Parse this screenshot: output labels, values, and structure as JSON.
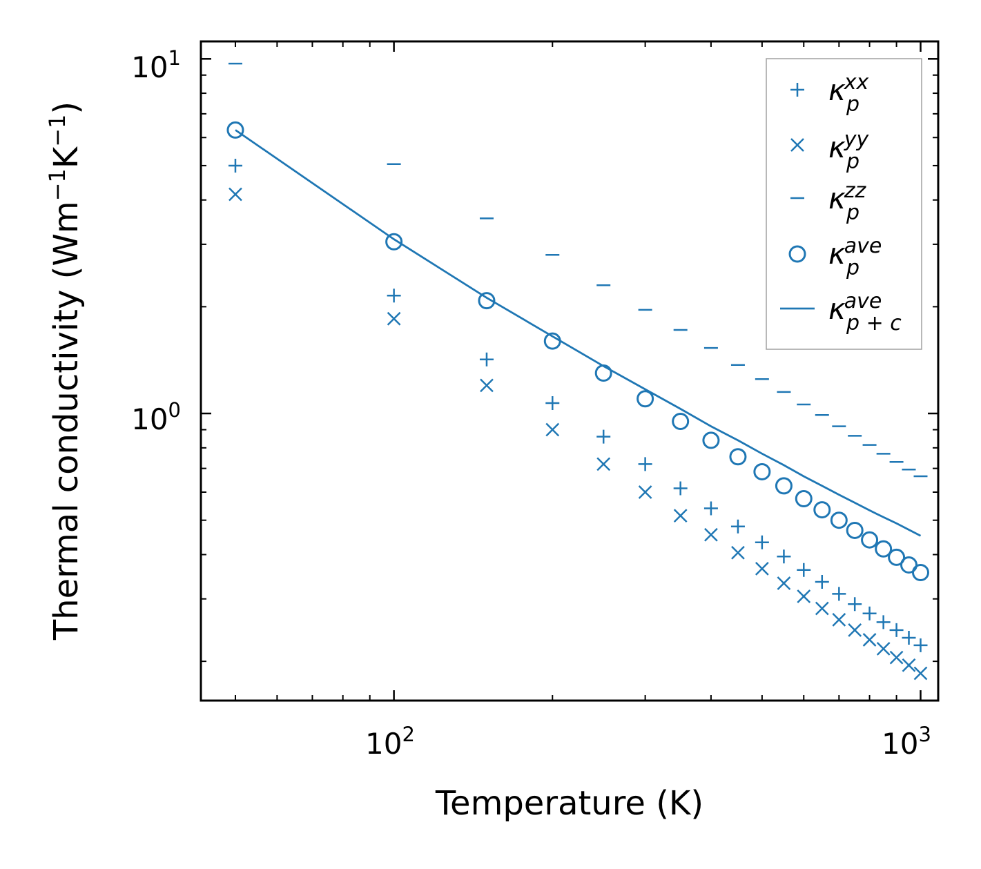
{
  "chart_data": {
    "type": "scatter",
    "title": "",
    "xscale": "log",
    "yscale": "log",
    "xlim": [
      43,
      1080
    ],
    "ylim": [
      0.155,
      11.2
    ],
    "xlabel": "Temperature (K)",
    "ylabel": {
      "prefix": "Thermal conductivity (Wm",
      "sup1": "−1",
      "mid": "K",
      "sup2": "−1",
      "suffix": ")"
    },
    "x_ticks": [
      {
        "base": "10",
        "exp": "2",
        "value": 100
      },
      {
        "base": "10",
        "exp": "3",
        "value": 1000
      }
    ],
    "y_ticks": [
      {
        "base": "10",
        "exp": "0",
        "value": 1
      },
      {
        "base": "10",
        "exp": "1",
        "value": 10
      }
    ],
    "legend_position": "top-right",
    "color": "#1f77b4",
    "series": [
      {
        "name": "kappa_p^xx",
        "symbol": "κ",
        "sub": "p",
        "sup": "xx",
        "marker": "plus",
        "x": [
          50,
          100,
          150,
          200,
          250,
          300,
          350,
          400,
          450,
          500,
          550,
          600,
          650,
          700,
          750,
          800,
          850,
          900,
          950,
          1000
        ],
        "y": [
          5.0,
          2.15,
          1.42,
          1.07,
          0.86,
          0.72,
          0.615,
          0.54,
          0.48,
          0.433,
          0.395,
          0.362,
          0.335,
          0.31,
          0.29,
          0.273,
          0.258,
          0.245,
          0.233,
          0.222
        ]
      },
      {
        "name": "kappa_p^yy",
        "symbol": "κ",
        "sub": "p",
        "sup": "yy",
        "marker": "x",
        "x": [
          50,
          100,
          150,
          200,
          250,
          300,
          350,
          400,
          450,
          500,
          550,
          600,
          650,
          700,
          750,
          800,
          850,
          900,
          950,
          1000
        ],
        "y": [
          4.15,
          1.85,
          1.2,
          0.9,
          0.72,
          0.6,
          0.515,
          0.455,
          0.405,
          0.365,
          0.332,
          0.305,
          0.282,
          0.262,
          0.245,
          0.23,
          0.217,
          0.205,
          0.195,
          0.185
        ]
      },
      {
        "name": "kappa_p^zz",
        "symbol": "κ",
        "sub": "p",
        "sup": "zz",
        "marker": "hline",
        "x": [
          50,
          100,
          150,
          200,
          250,
          300,
          350,
          400,
          450,
          500,
          550,
          600,
          650,
          700,
          750,
          800,
          850,
          900,
          950,
          1000
        ],
        "y": [
          9.7,
          5.05,
          3.55,
          2.8,
          2.3,
          1.96,
          1.72,
          1.53,
          1.37,
          1.25,
          1.15,
          1.06,
          0.99,
          0.92,
          0.865,
          0.815,
          0.77,
          0.73,
          0.695,
          0.665
        ]
      },
      {
        "name": "kappa_p^ave",
        "symbol": "κ",
        "sub": "p",
        "sup": "ave",
        "marker": "circle",
        "x": [
          50,
          100,
          150,
          200,
          250,
          300,
          350,
          400,
          450,
          500,
          550,
          600,
          650,
          700,
          750,
          800,
          850,
          900,
          950,
          1000
        ],
        "y": [
          6.3,
          3.05,
          2.08,
          1.6,
          1.3,
          1.1,
          0.95,
          0.84,
          0.755,
          0.685,
          0.625,
          0.575,
          0.535,
          0.5,
          0.468,
          0.44,
          0.415,
          0.393,
          0.374,
          0.356
        ]
      },
      {
        "name": "kappa_p+c^ave",
        "symbol": "κ",
        "sub": "p + c",
        "sup": "ave",
        "marker": "line",
        "x": [
          50,
          100,
          150,
          200,
          250,
          300,
          350,
          400,
          450,
          500,
          550,
          600,
          650,
          700,
          750,
          800,
          850,
          900,
          950,
          1000
        ],
        "y": [
          6.3,
          3.1,
          2.12,
          1.65,
          1.36,
          1.17,
          1.03,
          0.92,
          0.84,
          0.77,
          0.715,
          0.665,
          0.625,
          0.59,
          0.56,
          0.533,
          0.51,
          0.49,
          0.47,
          0.452
        ]
      }
    ]
  }
}
